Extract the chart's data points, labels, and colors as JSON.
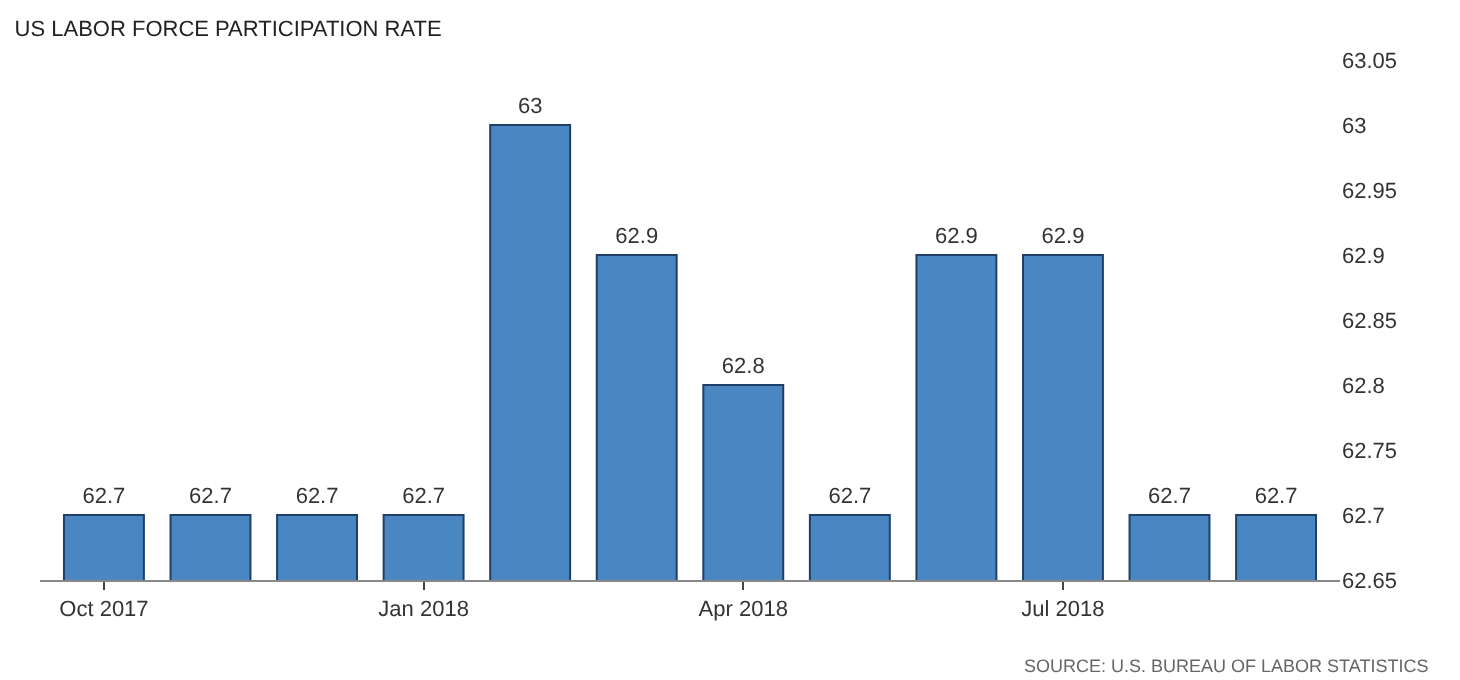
{
  "chart_data": {
    "type": "bar",
    "title": "US LABOR FORCE PARTICIPATION RATE",
    "categories": [
      "Oct 2017",
      null,
      null,
      "Jan 2018",
      null,
      null,
      "Apr 2018",
      null,
      null,
      "Jul 2018",
      null,
      null
    ],
    "values": [
      62.7,
      62.7,
      62.7,
      62.7,
      63,
      62.9,
      62.8,
      62.7,
      62.9,
      62.9,
      62.7,
      62.7
    ],
    "color": "#4a86c2",
    "data_labels": true,
    "grid": false,
    "legend": false,
    "ylim": [
      62.65,
      63.05
    ],
    "yticks": [
      62.65,
      62.7,
      62.75,
      62.8,
      62.85,
      62.9,
      62.95,
      63,
      63.05
    ],
    "annotations": [
      "SOURCE: U.S. BUREAU OF LABOR STATISTICS"
    ]
  }
}
